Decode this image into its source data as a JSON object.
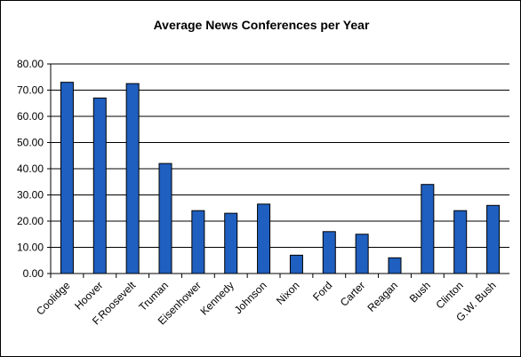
{
  "chart_data": {
    "type": "bar",
    "title": "Average News Conferences per Year",
    "xlabel": "",
    "ylabel": "",
    "categories": [
      "Coolidge",
      "Hoover",
      "F.Roosevelt",
      "Truman",
      "Eisenhower",
      "Kennedy",
      "Johnson",
      "Nixon",
      "Ford",
      "Carter",
      "Reagan",
      "Bush",
      "Clinton",
      "G.W. Bush"
    ],
    "values": [
      73,
      67,
      72.5,
      42,
      24,
      23,
      26.5,
      7,
      16,
      15,
      6,
      34,
      24,
      26
    ],
    "ylim": [
      0,
      80
    ],
    "yticks": [
      "0.00",
      "10.00",
      "20.00",
      "30.00",
      "40.00",
      "50.00",
      "60.00",
      "70.00",
      "80.00"
    ],
    "grid": true,
    "legend": "none",
    "bar_color": "#1f5fbf"
  }
}
